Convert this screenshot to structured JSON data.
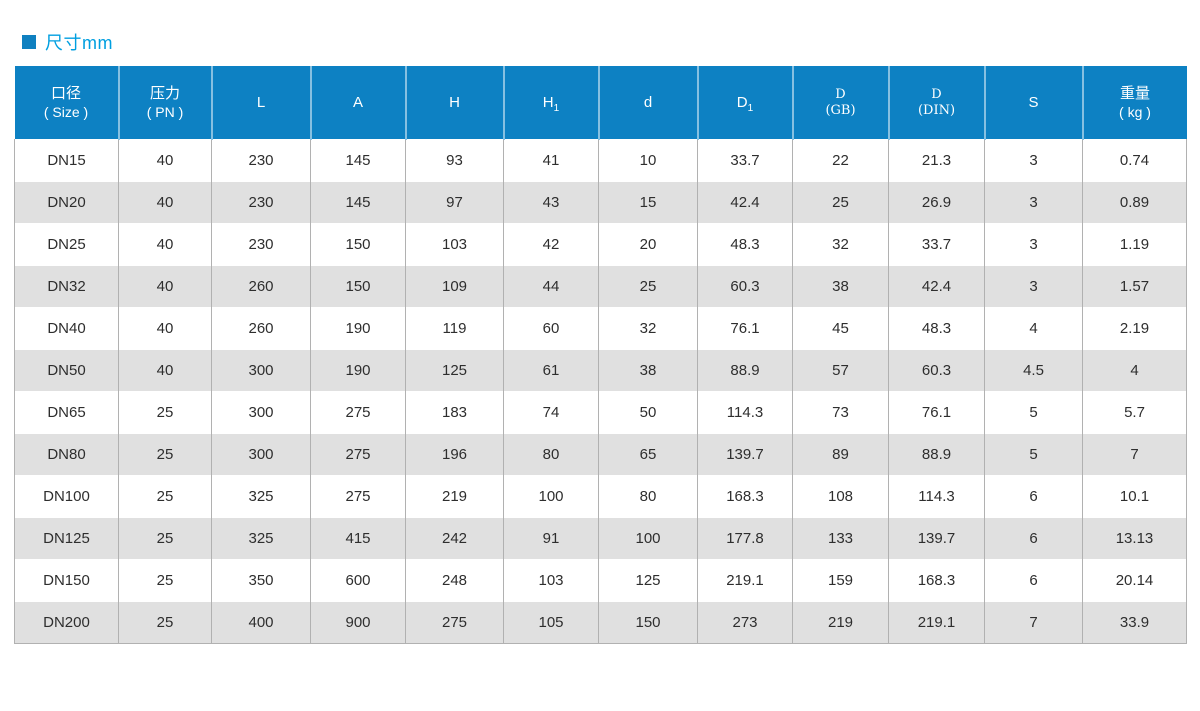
{
  "section": {
    "title": "尺寸mm"
  },
  "colors": {
    "header_bg": "#0d81c3",
    "title_text": "#009fe0",
    "title_marker": "#0f80c0",
    "row_stripe_bg": "#e0e0e0",
    "row_bg": "#ffffff",
    "grid_border": "#b1b1b1",
    "cell_text": "#2e2e2e",
    "header_text": "#ffffff"
  },
  "table": {
    "columns": [
      {
        "id": "size",
        "label": "口径",
        "label2": "( Size )"
      },
      {
        "id": "pn",
        "label": "压力",
        "label2": "( PN )"
      },
      {
        "id": "l",
        "label": "L"
      },
      {
        "id": "a",
        "label": "A"
      },
      {
        "id": "h",
        "label": "H"
      },
      {
        "id": "h1",
        "label": "H",
        "sub": "1"
      },
      {
        "id": "d",
        "label": "d"
      },
      {
        "id": "d1",
        "label": "D",
        "sub": "1"
      },
      {
        "id": "d-gb",
        "label": "D",
        "label2": "(GB)",
        "style": "serif"
      },
      {
        "id": "d-din",
        "label": "D",
        "label2": "(DIN)",
        "style": "serif"
      },
      {
        "id": "s",
        "label": "S"
      },
      {
        "id": "weight",
        "label": "重量",
        "label2": "( kg )"
      }
    ],
    "rows": [
      [
        "DN15",
        "40",
        "230",
        "145",
        "93",
        "41",
        "10",
        "33.7",
        "22",
        "21.3",
        "3",
        "0.74"
      ],
      [
        "DN20",
        "40",
        "230",
        "145",
        "97",
        "43",
        "15",
        "42.4",
        "25",
        "26.9",
        "3",
        "0.89"
      ],
      [
        "DN25",
        "40",
        "230",
        "150",
        "103",
        "42",
        "20",
        "48.3",
        "32",
        "33.7",
        "3",
        "1.19"
      ],
      [
        "DN32",
        "40",
        "260",
        "150",
        "109",
        "44",
        "25",
        "60.3",
        "38",
        "42.4",
        "3",
        "1.57"
      ],
      [
        "DN40",
        "40",
        "260",
        "190",
        "119",
        "60",
        "32",
        "76.1",
        "45",
        "48.3",
        "4",
        "2.19"
      ],
      [
        "DN50",
        "40",
        "300",
        "190",
        "125",
        "61",
        "38",
        "88.9",
        "57",
        "60.3",
        "4.5",
        "4"
      ],
      [
        "DN65",
        "25",
        "300",
        "275",
        "183",
        "74",
        "50",
        "114.3",
        "73",
        "76.1",
        "5",
        "5.7"
      ],
      [
        "DN80",
        "25",
        "300",
        "275",
        "196",
        "80",
        "65",
        "139.7",
        "89",
        "88.9",
        "5",
        "7"
      ],
      [
        "DN100",
        "25",
        "325",
        "275",
        "219",
        "100",
        "80",
        "168.3",
        "108",
        "114.3",
        "6",
        "10.1"
      ],
      [
        "DN125",
        "25",
        "325",
        "415",
        "242",
        "91",
        "100",
        "177.8",
        "133",
        "139.7",
        "6",
        "13.13"
      ],
      [
        "DN150",
        "25",
        "350",
        "600",
        "248",
        "103",
        "125",
        "219.1",
        "159",
        "168.3",
        "6",
        "20.14"
      ],
      [
        "DN200",
        "25",
        "400",
        "900",
        "275",
        "105",
        "150",
        "273",
        "219",
        "219.1",
        "7",
        "33.9"
      ]
    ]
  }
}
